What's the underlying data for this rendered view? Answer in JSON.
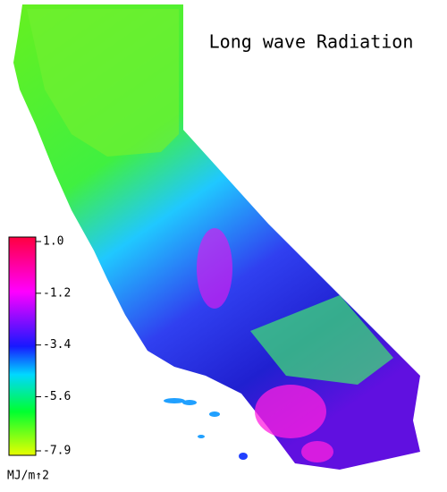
{
  "title": "Long wave Radiation",
  "colorbar": {
    "unit": "MJ/m↑2",
    "lim": [
      -7.9,
      1
    ],
    "ticks": [
      {
        "value": 1,
        "label": "1.0"
      },
      -1.2,
      -3.4,
      -5.6,
      -7.9
    ]
  }
}
